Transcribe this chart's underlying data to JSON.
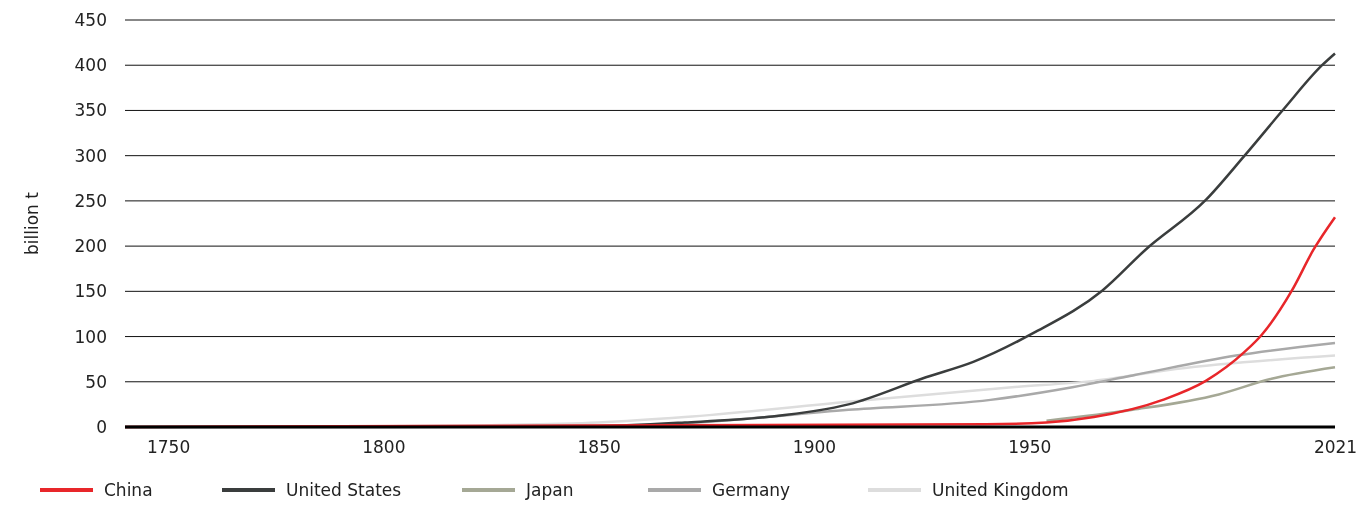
{
  "chart_data": {
    "type": "line",
    "ylabel": "billion t",
    "xlim": [
      1740,
      2021
    ],
    "xticks": [
      1750,
      1800,
      1850,
      1900,
      1950,
      2021
    ],
    "ylim": [
      0,
      450
    ],
    "yticks": [
      0,
      50,
      100,
      150,
      200,
      250,
      300,
      350,
      400,
      450
    ],
    "grid": "y",
    "legend": "bottom",
    "marker": "none",
    "line_style": "solid",
    "series": [
      {
        "name": "China",
        "color": "#e8262a",
        "x": [
          1740,
          1940,
          1954,
          1965,
          1981,
          1991,
          2000,
          2004,
          2011,
          2016,
          2021
        ],
        "values": [
          0,
          3,
          5,
          11,
          30,
          51,
          83,
          102,
          151,
          196,
          232
        ]
      },
      {
        "name": "United States",
        "color": "#3a3d3d",
        "x": [
          1740,
          1848,
          1870,
          1889,
          1908,
          1926,
          1937,
          1951,
          1967,
          1977,
          1991,
          2000,
          2009,
          2018,
          2021
        ],
        "values": [
          0,
          1,
          5,
          11,
          25,
          55,
          72,
          104,
          151,
          196,
          251,
          300,
          351,
          400,
          413
        ]
      },
      {
        "name": "Japan",
        "color": "#a5a895",
        "x": [
          1954,
          1974,
          1994,
          2006,
          2021
        ],
        "values": [
          7,
          19,
          36,
          53,
          66
        ]
      },
      {
        "name": "Germany",
        "color": "#a9a9a9",
        "x": [
          1740,
          1800,
          1850,
          1870,
          1908,
          1941,
          1960,
          1974,
          1998,
          2021
        ],
        "values": [
          0,
          0,
          1,
          4,
          19,
          30,
          44,
          57,
          79,
          93
        ]
      },
      {
        "name": "United Kingdom",
        "color": "#dddddd",
        "x": [
          1740,
          1780,
          1825,
          1850,
          1870,
          1908,
          1946,
          1965,
          1984,
          2021
        ],
        "values": [
          0,
          0,
          2,
          5,
          11,
          28,
          44,
          51,
          64,
          79
        ]
      }
    ]
  }
}
